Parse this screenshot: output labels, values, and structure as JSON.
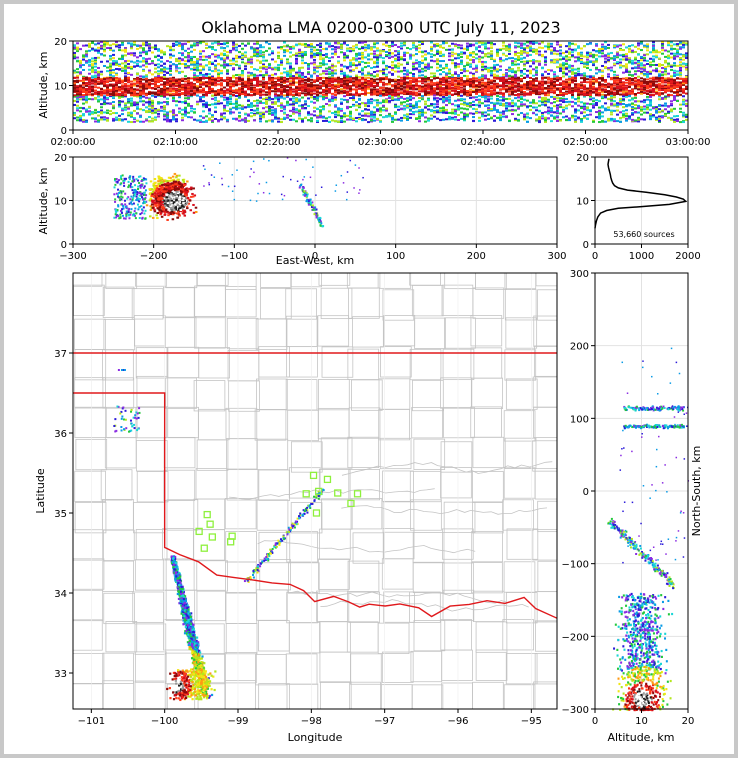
{
  "title": "Oklahoma LMA 0200-0300 UTC July 11, 2023",
  "colors": {
    "state_border": "#e0191c",
    "county_lines": "#c4c4c4",
    "station_marker": "#8ef03c",
    "axis": "#000000",
    "density_scale": [
      "#2b1bd9",
      "#8a2be2",
      "#0a9be6",
      "#1ad6d6",
      "#22c83c",
      "#b4e61e",
      "#f0e614",
      "#ff9a14",
      "#ff3a1a",
      "#d8101e",
      "#8a0a0a",
      "#ffffff",
      "#9a9a9a",
      "#1a1a1a"
    ]
  },
  "chart_data": [
    {
      "id": "time_height",
      "type": "heatmap",
      "xlabel": "",
      "ylabel": "Altitude, km",
      "xlim": [
        "02:00:00",
        "03:00:00"
      ],
      "xticks": [
        "02:00:00",
        "02:10:00",
        "02:20:00",
        "02:30:00",
        "02:40:00",
        "02:50:00",
        "03:00:00"
      ],
      "ylim": [
        0,
        20
      ],
      "yticks": [
        "0",
        "10",
        "20"
      ],
      "peak_band_km": [
        8,
        12
      ]
    },
    {
      "id": "ew_height",
      "type": "heatmap",
      "xlabel": "East-West, km",
      "ylabel": "Altitude, km",
      "xlim": [
        -300,
        300
      ],
      "xticks": [
        "−300",
        "−200",
        "−100",
        "0",
        "100",
        "200",
        "300"
      ],
      "ylim": [
        0,
        20
      ],
      "yticks": [
        "0",
        "10",
        "20"
      ]
    },
    {
      "id": "alt_histogram",
      "type": "line",
      "xlabel": "",
      "ylabel": "",
      "xlim": [
        0,
        2000
      ],
      "xticks": [
        "0",
        "1000",
        "2000"
      ],
      "ylim": [
        0,
        20
      ],
      "yticks": [
        "0",
        "10",
        "20"
      ],
      "annotation": "53,660 sources",
      "x": [
        300,
        290,
        280,
        290,
        310,
        330,
        340,
        360,
        380,
        420,
        500,
        700,
        1100,
        1500,
        1750,
        1900,
        1950,
        1600,
        1000,
        500,
        250,
        120,
        60,
        30,
        10,
        0
      ],
      "y": [
        19.6,
        19,
        18.3,
        17.6,
        16.8,
        16,
        15.3,
        14.6,
        14,
        13.4,
        12.9,
        12.4,
        11.9,
        11.3,
        10.8,
        10.3,
        9.8,
        9.1,
        8.6,
        8.2,
        7.7,
        7.1,
        6.2,
        5.3,
        4.4,
        3.6
      ]
    },
    {
      "id": "plan_view",
      "type": "scatter",
      "xlabel": "Longitude",
      "ylabel": "Latitude",
      "xlim": [
        -101.25,
        -94.65
      ],
      "xticks": [
        "−101",
        "−100",
        "−99",
        "−98",
        "−97",
        "−96",
        "−95"
      ],
      "ylim": [
        32.55,
        38.0
      ],
      "yticks": [
        "33",
        "34",
        "35",
        "36",
        "37"
      ],
      "stations": {
        "lon": [
          -97.97,
          -97.78,
          -98.07,
          -97.9,
          -97.64,
          -97.37,
          -97.46,
          -97.93,
          -99.42,
          -99.53,
          -99.38,
          -99.46,
          -99.35,
          -99.08,
          -99.1
        ],
        "lat": [
          35.47,
          35.42,
          35.24,
          35.27,
          35.25,
          35.24,
          35.12,
          35.0,
          34.98,
          34.77,
          34.86,
          34.56,
          34.7,
          34.71,
          34.64
        ]
      }
    },
    {
      "id": "ns_height",
      "type": "heatmap",
      "xlabel": "Altitude, km",
      "ylabel": "North-South, km",
      "xlim": [
        0,
        20
      ],
      "xticks": [
        "0",
        "10",
        "20"
      ],
      "ylim": [
        -300,
        300
      ],
      "yticks": [
        "−300",
        "−200",
        "−100",
        "0",
        "100",
        "200",
        "300"
      ]
    }
  ]
}
